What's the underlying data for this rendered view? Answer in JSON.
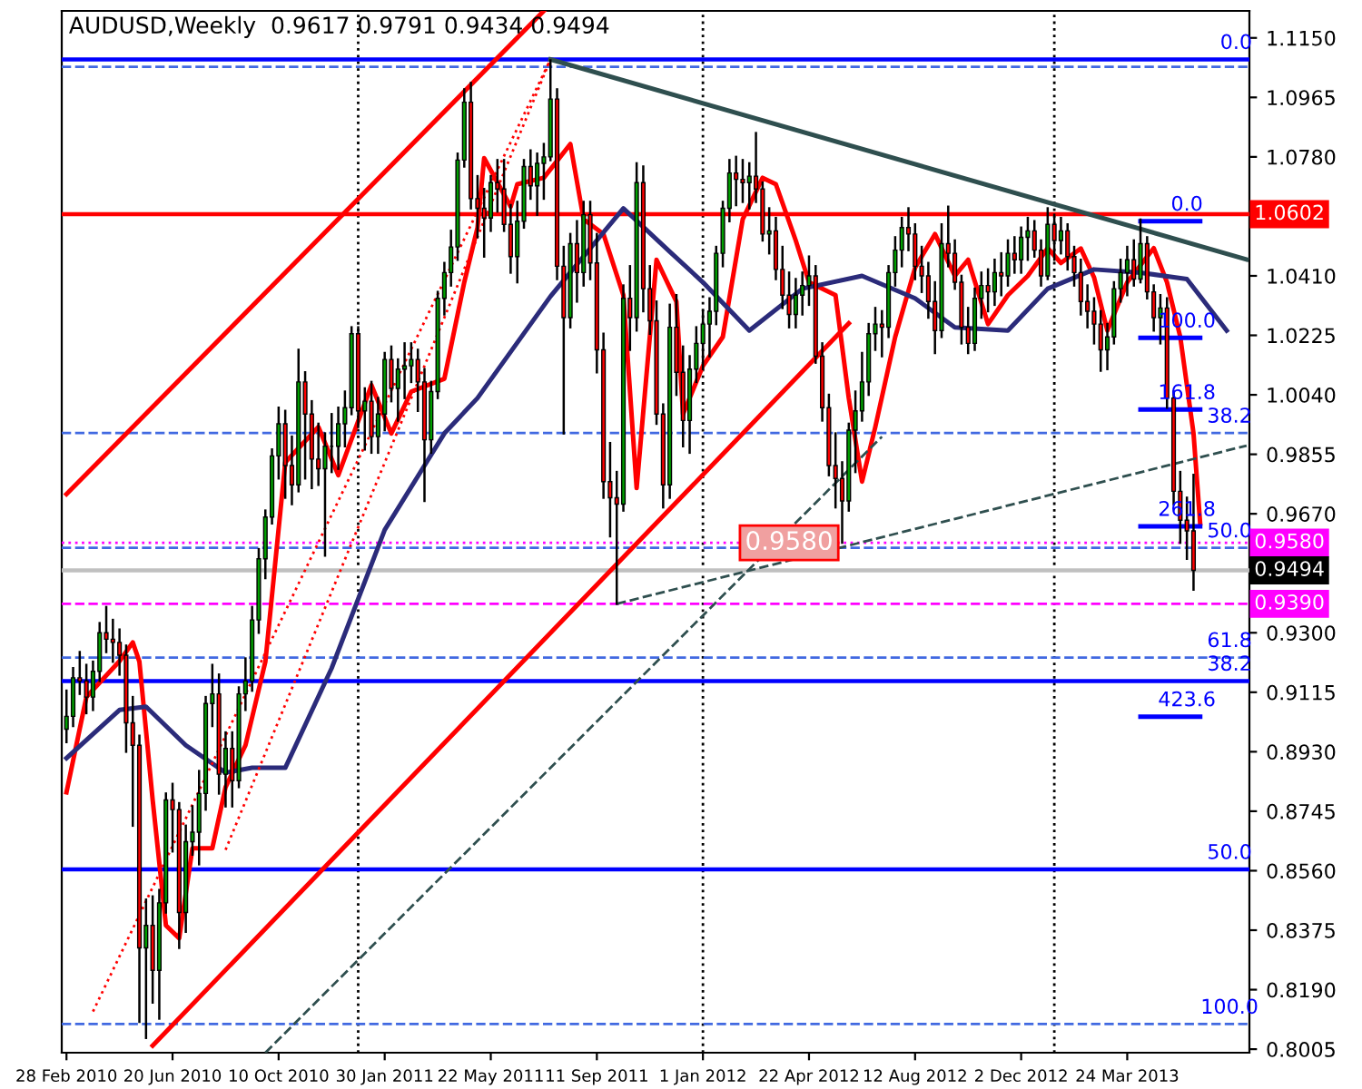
{
  "chart_data": {
    "type": "candlestick",
    "title": "AUDUSD,Weekly  0.9617 0.9791 0.9434 0.9494",
    "x": [
      "2010-02-28",
      "2010-03-07",
      "2010-03-14",
      "2010-03-21",
      "2010-03-28",
      "2010-04-04",
      "2010-04-11",
      "2010-04-18",
      "2010-04-25",
      "2010-05-02",
      "2010-05-09",
      "2010-05-16",
      "2010-05-23",
      "2010-05-30",
      "2010-06-06",
      "2010-06-13",
      "2010-06-20",
      "2010-06-27",
      "2010-07-04",
      "2010-07-11",
      "2010-07-18",
      "2010-07-25",
      "2010-08-01",
      "2010-08-08",
      "2010-08-15",
      "2010-08-22",
      "2010-08-29",
      "2010-09-05",
      "2010-09-12",
      "2010-09-19",
      "2010-09-26",
      "2010-10-03",
      "2010-10-10",
      "2010-10-17",
      "2010-10-24",
      "2010-10-31",
      "2010-11-07",
      "2010-11-14",
      "2010-11-21",
      "2010-11-28",
      "2010-12-05",
      "2010-12-12",
      "2010-12-19",
      "2010-12-26",
      "2011-01-02",
      "2011-01-09",
      "2011-01-16",
      "2011-01-23",
      "2011-01-30",
      "2011-02-06",
      "2011-02-13",
      "2011-02-20",
      "2011-02-27",
      "2011-03-06",
      "2011-03-13",
      "2011-03-20",
      "2011-03-27",
      "2011-04-03",
      "2011-04-10",
      "2011-04-17",
      "2011-04-24",
      "2011-05-01",
      "2011-05-08",
      "2011-05-15",
      "2011-05-22",
      "2011-05-29",
      "2011-06-05",
      "2011-06-12",
      "2011-06-19",
      "2011-06-26",
      "2011-07-03",
      "2011-07-10",
      "2011-07-17",
      "2011-07-24",
      "2011-07-31",
      "2011-08-07",
      "2011-08-14",
      "2011-08-21",
      "2011-08-28",
      "2011-09-04",
      "2011-09-11",
      "2011-09-18",
      "2011-09-25",
      "2011-10-02",
      "2011-10-09",
      "2011-10-16",
      "2011-10-23",
      "2011-10-30",
      "2011-11-06",
      "2011-11-13",
      "2011-11-20",
      "2011-11-27",
      "2011-12-04",
      "2011-12-11",
      "2011-12-18",
      "2011-12-25",
      "2012-01-01",
      "2012-01-08",
      "2012-01-15",
      "2012-01-22",
      "2012-01-29",
      "2012-02-05",
      "2012-02-12",
      "2012-02-19",
      "2012-02-26",
      "2012-03-04",
      "2012-03-11",
      "2012-03-18",
      "2012-03-25",
      "2012-04-01",
      "2012-04-08",
      "2012-04-15",
      "2012-04-22",
      "2012-04-29",
      "2012-05-06",
      "2012-05-13",
      "2012-05-20",
      "2012-05-27",
      "2012-06-03",
      "2012-06-10",
      "2012-06-17",
      "2012-06-24",
      "2012-07-01",
      "2012-07-08",
      "2012-07-15",
      "2012-07-22",
      "2012-07-29",
      "2012-08-05",
      "2012-08-12",
      "2012-08-19",
      "2012-08-26",
      "2012-09-02",
      "2012-09-09",
      "2012-09-16",
      "2012-09-23",
      "2012-09-30",
      "2012-10-07",
      "2012-10-14",
      "2012-10-21",
      "2012-10-28",
      "2012-11-04",
      "2012-11-11",
      "2012-11-18",
      "2012-11-25",
      "2012-12-02",
      "2012-12-09",
      "2012-12-16",
      "2012-12-23",
      "2012-12-30",
      "2013-01-06",
      "2013-01-13",
      "2013-01-20",
      "2013-01-27",
      "2013-02-03",
      "2013-02-10",
      "2013-02-17",
      "2013-02-24",
      "2013-03-03",
      "2013-03-10",
      "2013-03-17",
      "2013-03-24",
      "2013-03-31",
      "2013-04-07",
      "2013-04-14",
      "2013-04-21",
      "2013-04-28",
      "2013-05-05",
      "2013-05-12",
      "2013-05-19",
      "2013-05-26",
      "2013-06-02"
    ],
    "ohlc": [
      [
        0.9,
        0.912,
        0.896,
        0.904
      ],
      [
        0.904,
        0.919,
        0.901,
        0.916
      ],
      [
        0.916,
        0.924,
        0.911,
        0.915
      ],
      [
        0.915,
        0.92,
        0.905,
        0.91
      ],
      [
        0.91,
        0.921,
        0.906,
        0.918
      ],
      [
        0.918,
        0.933,
        0.915,
        0.93
      ],
      [
        0.93,
        0.938,
        0.924,
        0.928
      ],
      [
        0.928,
        0.934,
        0.921,
        0.927
      ],
      [
        0.927,
        0.931,
        0.917,
        0.923
      ],
      [
        0.923,
        0.926,
        0.893,
        0.902
      ],
      [
        0.902,
        0.91,
        0.87,
        0.895
      ],
      [
        0.895,
        0.898,
        0.809,
        0.832
      ],
      [
        0.832,
        0.847,
        0.804,
        0.839
      ],
      [
        0.839,
        0.848,
        0.815,
        0.825
      ],
      [
        0.825,
        0.85,
        0.81,
        0.846
      ],
      [
        0.846,
        0.88,
        0.843,
        0.878
      ],
      [
        0.878,
        0.883,
        0.862,
        0.875
      ],
      [
        0.875,
        0.877,
        0.832,
        0.843
      ],
      [
        0.843,
        0.87,
        0.837,
        0.865
      ],
      [
        0.865,
        0.876,
        0.861,
        0.868
      ],
      [
        0.868,
        0.887,
        0.858,
        0.88
      ],
      [
        0.88,
        0.91,
        0.875,
        0.908
      ],
      [
        0.908,
        0.92,
        0.901,
        0.911
      ],
      [
        0.911,
        0.917,
        0.88,
        0.886
      ],
      [
        0.886,
        0.899,
        0.876,
        0.894
      ],
      [
        0.894,
        0.899,
        0.876,
        0.884
      ],
      [
        0.884,
        0.913,
        0.882,
        0.911
      ],
      [
        0.911,
        0.922,
        0.906,
        0.915
      ],
      [
        0.915,
        0.938,
        0.912,
        0.934
      ],
      [
        0.934,
        0.956,
        0.93,
        0.953
      ],
      [
        0.953,
        0.968,
        0.947,
        0.966
      ],
      [
        0.966,
        0.987,
        0.964,
        0.985
      ],
      [
        0.985,
        1.0,
        0.978,
        0.995
      ],
      [
        0.995,
        0.999,
        0.972,
        0.982
      ],
      [
        0.982,
        0.991,
        0.97,
        0.976
      ],
      [
        0.976,
        1.018,
        0.974,
        1.008
      ],
      [
        1.008,
        1.011,
        0.978,
        0.998
      ],
      [
        0.998,
        1.002,
        0.975,
        0.984
      ],
      [
        0.984,
        0.995,
        0.976,
        0.981
      ],
      [
        0.981,
        0.992,
        0.954,
        0.988
      ],
      [
        0.988,
        0.998,
        0.98,
        0.988
      ],
      [
        0.988,
        1.0,
        0.981,
        0.995
      ],
      [
        0.995,
        1.005,
        0.988,
        1.0
      ],
      [
        1.0,
        1.025,
        0.998,
        1.023
      ],
      [
        1.023,
        1.025,
        0.994,
        0.999
      ],
      [
        0.999,
        1.006,
        0.987,
        1.002
      ],
      [
        1.002,
        1.008,
        0.986,
        0.991
      ],
      [
        0.991,
        1.003,
        0.986,
        0.998
      ],
      [
        0.998,
        1.017,
        0.993,
        1.015
      ],
      [
        1.015,
        1.019,
        1.002,
        1.006
      ],
      [
        1.006,
        1.015,
        0.996,
        1.012
      ],
      [
        1.012,
        1.02,
        1.003,
        1.013
      ],
      [
        1.013,
        1.02,
        1.008,
        1.015
      ],
      [
        1.015,
        1.018,
        0.999,
        1.008
      ],
      [
        1.008,
        1.012,
        0.971,
        0.99
      ],
      [
        0.99,
        1.008,
        0.986,
        1.005
      ],
      [
        1.005,
        1.036,
        1.003,
        1.034
      ],
      [
        1.034,
        1.045,
        1.029,
        1.042
      ],
      [
        1.042,
        1.055,
        1.038,
        1.05
      ],
      [
        1.05,
        1.079,
        1.046,
        1.077
      ],
      [
        1.077,
        1.099,
        1.075,
        1.095
      ],
      [
        1.095,
        1.101,
        1.062,
        1.065
      ],
      [
        1.065,
        1.072,
        1.053,
        1.062
      ],
      [
        1.062,
        1.068,
        1.047,
        1.059
      ],
      [
        1.059,
        1.072,
        1.055,
        1.07
      ],
      [
        1.07,
        1.077,
        1.061,
        1.068
      ],
      [
        1.068,
        1.077,
        1.055,
        1.057
      ],
      [
        1.057,
        1.063,
        1.042,
        1.047
      ],
      [
        1.047,
        1.064,
        1.039,
        1.058
      ],
      [
        1.058,
        1.077,
        1.056,
        1.075
      ],
      [
        1.075,
        1.08,
        1.065,
        1.069
      ],
      [
        1.069,
        1.079,
        1.06,
        1.076
      ],
      [
        1.076,
        1.082,
        1.065,
        1.078
      ],
      [
        1.078,
        1.108,
        1.077,
        1.096
      ],
      [
        1.096,
        1.099,
        1.04,
        1.044
      ],
      [
        1.044,
        1.05,
        0.992,
        1.028
      ],
      [
        1.028,
        1.054,
        1.025,
        1.051
      ],
      [
        1.051,
        1.058,
        1.033,
        1.042
      ],
      [
        1.042,
        1.064,
        1.038,
        1.06
      ],
      [
        1.06,
        1.064,
        1.04,
        1.045
      ],
      [
        1.045,
        1.054,
        1.011,
        1.018
      ],
      [
        1.018,
        1.023,
        0.972,
        0.977
      ],
      [
        0.977,
        0.989,
        0.96,
        0.972
      ],
      [
        0.972,
        0.98,
        0.939,
        0.97
      ],
      [
        0.97,
        1.038,
        0.968,
        1.034
      ],
      [
        1.034,
        1.044,
        1.018,
        1.028
      ],
      [
        1.028,
        1.076,
        1.024,
        1.07
      ],
      [
        1.07,
        1.075,
        1.03,
        1.037
      ],
      [
        1.037,
        1.044,
        1.023,
        1.027
      ],
      [
        1.027,
        1.033,
        0.995,
        0.998
      ],
      [
        0.998,
        1.001,
        0.969,
        0.976
      ],
      [
        0.976,
        1.032,
        0.972,
        1.025
      ],
      [
        1.025,
        1.035,
        1.004,
        1.011
      ],
      [
        1.011,
        1.019,
        0.988,
        0.996
      ],
      [
        0.996,
        1.016,
        0.986,
        1.012
      ],
      [
        1.012,
        1.025,
        1.008,
        1.02
      ],
      [
        1.02,
        1.03,
        1.012,
        1.026
      ],
      [
        1.026,
        1.034,
        1.016,
        1.03
      ],
      [
        1.03,
        1.05,
        1.026,
        1.048
      ],
      [
        1.048,
        1.064,
        1.044,
        1.062
      ],
      [
        1.062,
        1.077,
        1.058,
        1.073
      ],
      [
        1.073,
        1.078,
        1.063,
        1.071
      ],
      [
        1.071,
        1.077,
        1.064,
        1.07
      ],
      [
        1.07,
        1.076,
        1.062,
        1.072
      ],
      [
        1.072,
        1.0854,
        1.064,
        1.068
      ],
      [
        1.068,
        1.07,
        1.052,
        1.054
      ],
      [
        1.054,
        1.062,
        1.048,
        1.055
      ],
      [
        1.055,
        1.059,
        1.04,
        1.043
      ],
      [
        1.043,
        1.05,
        1.031,
        1.035
      ],
      [
        1.035,
        1.042,
        1.025,
        1.029
      ],
      [
        1.029,
        1.04,
        1.025,
        1.035
      ],
      [
        1.035,
        1.042,
        1.029,
        1.038
      ],
      [
        1.038,
        1.047,
        1.032,
        1.041
      ],
      [
        1.041,
        1.044,
        1.014,
        1.016
      ],
      [
        1.016,
        1.02,
        0.996,
        1.0
      ],
      [
        1.0,
        1.004,
        0.979,
        0.982
      ],
      [
        0.982,
        0.992,
        0.969,
        0.978
      ],
      [
        0.978,
        0.983,
        0.958,
        0.971
      ],
      [
        0.971,
        0.995,
        0.968,
        0.993
      ],
      [
        0.993,
        1.005,
        0.98,
        0.999
      ],
      [
        0.999,
        1.017,
        0.996,
        1.008
      ],
      [
        1.008,
        1.026,
        1.004,
        1.023
      ],
      [
        1.023,
        1.031,
        1.018,
        1.026
      ],
      [
        1.026,
        1.03,
        1.016,
        1.025
      ],
      [
        1.025,
        1.044,
        1.022,
        1.042
      ],
      [
        1.042,
        1.053,
        1.038,
        1.049
      ],
      [
        1.049,
        1.059,
        1.044,
        1.056
      ],
      [
        1.056,
        1.062,
        1.049,
        1.054
      ],
      [
        1.054,
        1.057,
        1.04,
        1.044
      ],
      [
        1.044,
        1.05,
        1.036,
        1.041
      ],
      [
        1.041,
        1.045,
        1.028,
        1.033
      ],
      [
        1.033,
        1.039,
        1.017,
        1.024
      ],
      [
        1.024,
        1.057,
        1.022,
        1.051
      ],
      [
        1.051,
        1.0625,
        1.044,
        1.048
      ],
      [
        1.048,
        1.052,
        1.037,
        1.039
      ],
      [
        1.039,
        1.041,
        1.02,
        1.025
      ],
      [
        1.025,
        1.031,
        1.017,
        1.02
      ],
      [
        1.02,
        1.037,
        1.018,
        1.034
      ],
      [
        1.034,
        1.042,
        1.028,
        1.038
      ],
      [
        1.038,
        1.043,
        1.03,
        1.036
      ],
      [
        1.036,
        1.046,
        1.032,
        1.042
      ],
      [
        1.042,
        1.048,
        1.035,
        1.041
      ],
      [
        1.041,
        1.052,
        1.038,
        1.048
      ],
      [
        1.048,
        1.053,
        1.042,
        1.046
      ],
      [
        1.046,
        1.056,
        1.042,
        1.053
      ],
      [
        1.053,
        1.059,
        1.046,
        1.055
      ],
      [
        1.055,
        1.058,
        1.047,
        1.049
      ],
      [
        1.049,
        1.052,
        1.038,
        1.041
      ],
      [
        1.041,
        1.062,
        1.04,
        1.057
      ],
      [
        1.057,
        1.06,
        1.046,
        1.052
      ],
      [
        1.052,
        1.059,
        1.048,
        1.055
      ],
      [
        1.055,
        1.057,
        1.043,
        1.047
      ],
      [
        1.047,
        1.05,
        1.038,
        1.042
      ],
      [
        1.042,
        1.046,
        1.029,
        1.033
      ],
      [
        1.033,
        1.038,
        1.025,
        1.03
      ],
      [
        1.03,
        1.034,
        1.02,
        1.026
      ],
      [
        1.026,
        1.03,
        1.0115,
        1.018
      ],
      [
        1.018,
        1.026,
        1.012,
        1.022
      ],
      [
        1.022,
        1.039,
        1.02,
        1.037
      ],
      [
        1.037,
        1.046,
        1.033,
        1.042
      ],
      [
        1.042,
        1.05,
        1.035,
        1.046
      ],
      [
        1.046,
        1.052,
        1.038,
        1.04
      ],
      [
        1.04,
        1.0585,
        1.039,
        1.051
      ],
      [
        1.051,
        1.053,
        1.034,
        1.036
      ],
      [
        1.036,
        1.038,
        1.024,
        1.028
      ],
      [
        1.028,
        1.035,
        1.02,
        1.031
      ],
      [
        1.031,
        1.034,
        1.0,
        1.003
      ],
      [
        1.003,
        1.005,
        0.97,
        0.974
      ],
      [
        0.974,
        0.98,
        0.958,
        0.965
      ],
      [
        0.965,
        0.972,
        0.953,
        0.9617
      ],
      [
        0.9617,
        0.9791,
        0.9434,
        0.9494
      ]
    ],
    "series": [
      {
        "type": "line",
        "color": "#ff0000",
        "x": [
          "2010-02-28",
          "2010-03-21",
          "2010-04-25",
          "2010-05-09",
          "2010-05-16",
          "2010-05-30",
          "2010-06-13",
          "2010-06-27",
          "2010-07-11",
          "2010-08-01",
          "2010-08-15",
          "2010-09-05",
          "2010-09-26",
          "2010-10-17",
          "2010-11-21",
          "2010-12-12",
          "2011-01-16",
          "2011-02-06",
          "2011-02-27",
          "2011-04-03",
          "2011-04-24",
          "2011-05-08",
          "2011-05-15",
          "2011-06-12",
          "2011-06-19",
          "2011-07-17",
          "2011-08-14",
          "2011-08-28",
          "2011-09-18",
          "2011-10-09",
          "2011-10-23",
          "2011-11-13",
          "2011-12-04",
          "2011-12-11",
          "2012-01-01",
          "2012-01-22",
          "2012-02-12",
          "2012-03-04",
          "2012-03-18",
          "2012-04-08",
          "2012-04-22",
          "2012-05-20",
          "2012-06-03",
          "2012-06-17",
          "2012-07-01",
          "2012-07-22",
          "2012-08-12",
          "2012-09-02",
          "2012-09-23",
          "2012-10-07",
          "2012-10-28",
          "2012-11-18",
          "2012-12-09",
          "2012-12-30",
          "2013-01-13",
          "2013-02-03",
          "2013-02-17",
          "2013-03-03",
          "2013-03-24",
          "2013-04-21",
          "2013-05-05",
          "2013-05-19",
          "2013-06-02",
          "2013-06-09"
        ],
        "values": [
          0.8804,
          0.91,
          0.9212,
          0.927,
          0.921,
          0.878,
          0.839,
          0.835,
          0.863,
          0.863,
          0.882,
          0.895,
          0.921,
          0.983,
          0.994,
          0.979,
          1.007,
          0.992,
          1.005,
          1.009,
          1.039,
          1.056,
          1.0776,
          1.0625,
          1.0695,
          1.0715,
          1.082,
          1.0586,
          1.054,
          1.035,
          0.975,
          1.046,
          1.033,
          0.998,
          1.013,
          1.022,
          1.0586,
          1.0715,
          1.0695,
          1.052,
          1.039,
          1.035,
          1.003,
          0.977,
          0.994,
          1.022,
          1.0435,
          1.054,
          1.041,
          1.046,
          1.026,
          1.035,
          1.041,
          1.0496,
          1.045,
          1.0495,
          1.0405,
          1.024,
          1.039,
          1.0496,
          1.039,
          1.022,
          0.992,
          0.964
        ]
      },
      {
        "type": "line",
        "color": "#2b2b7a",
        "x": [
          "2010-02-28",
          "2010-04-25",
          "2010-05-23",
          "2010-07-04",
          "2010-08-15",
          "2010-09-12",
          "2010-10-17",
          "2010-12-05",
          "2011-01-30",
          "2011-04-03",
          "2011-05-08",
          "2011-07-24",
          "2011-10-09",
          "2011-11-27",
          "2012-01-01",
          "2012-02-19",
          "2012-04-15",
          "2012-06-17",
          "2012-08-12",
          "2012-09-23",
          "2012-11-18",
          "2012-12-30",
          "2013-02-17",
          "2013-04-07",
          "2013-05-26",
          "2013-07-07"
        ],
        "values": [
          0.891,
          0.906,
          0.907,
          0.895,
          0.8865,
          0.888,
          0.888,
          0.919,
          0.962,
          0.992,
          1.003,
          1.0346,
          1.062,
          1.0485,
          1.039,
          1.024,
          1.037,
          1.041,
          1.034,
          1.025,
          1.024,
          1.037,
          1.043,
          1.042,
          1.04,
          1.024
        ]
      },
      {
        "type": "line",
        "color": "#ff0000",
        "x": [
          "2010-02-28",
          "2011-07-17"
        ],
        "values": [
          0.9731,
          1.1234
        ]
      },
      {
        "type": "line",
        "color": "#ff0000",
        "x": [
          "2010-05-30",
          "2012-06-03"
        ],
        "values": [
          0.8016,
          1.0262
        ]
      },
      {
        "type": "line",
        "color": "#ff0000",
        "line_style": "dotted",
        "x": [
          "2010-03-28",
          "2011-07-24"
        ],
        "values": [
          0.8122,
          1.1083
        ]
      },
      {
        "type": "line",
        "color": "#ff0000",
        "line_style": "dotted",
        "x": [
          "2010-08-15",
          "2011-07-24"
        ],
        "values": [
          0.8625,
          1.1083
        ]
      },
      {
        "type": "line",
        "color": "#2f4f4f",
        "x": [
          "2011-07-24",
          "2013-07-28"
        ],
        "values": [
          1.1083,
          1.0461
        ]
      },
      {
        "type": "line",
        "color": "#2f4f4f",
        "line_style": "dashed",
        "x": [
          "2010-09-26",
          "2012-07-08"
        ],
        "values": [
          0.7994,
          0.991
        ]
      },
      {
        "type": "line",
        "color": "#2f4f4f",
        "line_style": "dashed",
        "x": [
          "2011-10-02",
          "2013-07-28"
        ],
        "values": [
          0.939,
          0.9882
        ]
      },
      {
        "type": "line",
        "color": "#0000ff",
        "x": [
          "2013-04-07",
          "2013-06-09"
        ],
        "values": [
          1.058,
          1.058
        ]
      },
      {
        "type": "line",
        "color": "#0000ff",
        "x": [
          "2013-04-07",
          "2013-06-09"
        ],
        "values": [
          1.0217,
          1.0217
        ]
      },
      {
        "type": "line",
        "color": "#0000ff",
        "x": [
          "2013-04-07",
          "2013-06-09"
        ],
        "values": [
          0.9994,
          0.9994
        ]
      },
      {
        "type": "line",
        "color": "#0000ff",
        "x": [
          "2013-04-07",
          "2013-06-09"
        ],
        "values": [
          0.9631,
          0.9631
        ]
      },
      {
        "type": "line",
        "color": "#0000ff",
        "x": [
          "2013-04-07",
          "2013-06-09"
        ],
        "values": [
          0.9039,
          0.9039
        ]
      }
    ],
    "ref_lines": [
      {
        "axis": "y",
        "value": 1.1083,
        "color": "#0000ff",
        "line_style": "solid"
      },
      {
        "axis": "y",
        "value": 1.106,
        "color": "#4169e1",
        "line_style": "dashed"
      },
      {
        "axis": "y",
        "value": 1.0602,
        "label": "1.0602",
        "color": "#ff0000",
        "line_style": "solid"
      },
      {
        "axis": "y",
        "value": 0.9921,
        "color": "#4169e1",
        "line_style": "dashed"
      },
      {
        "axis": "y",
        "value": 0.9564,
        "color": "#4169e1",
        "line_style": "dashed"
      },
      {
        "axis": "y",
        "value": 0.958,
        "label": "0.9580",
        "color": "#ff00ff",
        "line_style": "dotted"
      },
      {
        "axis": "y",
        "value": 0.9494,
        "label": "0.9494",
        "color": "#c0c0c0",
        "line_style": "solid"
      },
      {
        "axis": "y",
        "value": 0.939,
        "label": "0.9390",
        "color": "#ff00ff",
        "line_style": "dashed"
      },
      {
        "axis": "y",
        "value": 0.9223,
        "color": "#4169e1",
        "line_style": "dashed"
      },
      {
        "axis": "y",
        "value": 0.915,
        "color": "#0000ff",
        "line_style": "solid"
      },
      {
        "axis": "y",
        "value": 0.8564,
        "color": "#0000ff",
        "line_style": "solid"
      },
      {
        "axis": "y",
        "value": 0.8083,
        "color": "#4169e1",
        "line_style": "dashed"
      },
      {
        "axis": "x",
        "value": "2011-01-02",
        "color": "#000000",
        "line_style": "dotted"
      },
      {
        "axis": "x",
        "value": "2012-01-01",
        "color": "#000000",
        "line_style": "dotted"
      },
      {
        "axis": "x",
        "value": "2013-01-06",
        "color": "#000000",
        "line_style": "dotted"
      }
    ],
    "annotations": [
      {
        "text": "0.9580",
        "x": "2012-04-01",
        "y": 0.958
      },
      {
        "text": "0.0",
        "x": "2013-05-26",
        "y": 1.058
      },
      {
        "text": "100.0",
        "x": "2013-05-26",
        "y": 1.0217
      },
      {
        "text": "161.8",
        "x": "2013-05-26",
        "y": 0.9994
      },
      {
        "text": "261.8",
        "x": "2013-05-26",
        "y": 0.9631
      },
      {
        "text": "423.6",
        "x": "2013-05-26",
        "y": 0.9039
      },
      {
        "text": "0.0",
        "x": "2013-07-17",
        "y": 1.1083
      },
      {
        "text": "38.2",
        "x": "2013-07-10",
        "y": 0.9921
      },
      {
        "text": "50.0",
        "x": "2013-07-10",
        "y": 0.9564
      },
      {
        "text": "61.8",
        "x": "2013-07-10",
        "y": 0.9223
      },
      {
        "text": "38.2",
        "x": "2013-07-10",
        "y": 0.915
      },
      {
        "text": "50.0",
        "x": "2013-07-10",
        "y": 0.8564
      },
      {
        "text": "100.0",
        "x": "2013-07-10",
        "y": 0.8083
      }
    ],
    "xlim": [
      "2010-02-23",
      "2013-07-31"
    ],
    "xticks": [
      {
        "value": "2010-02-28",
        "label": "28 Feb 2010"
      },
      {
        "value": "2010-06-20",
        "label": "20 Jun 2010"
      },
      {
        "value": "2010-10-10",
        "label": "10 Oct 2010"
      },
      {
        "value": "2011-01-30",
        "label": "30 Jan 2011"
      },
      {
        "value": "2011-05-22",
        "label": "22 May 2011"
      },
      {
        "value": "2011-09-11",
        "label": "11 Sep 2011"
      },
      {
        "value": "2012-01-01",
        "label": "1 Jan 2012"
      },
      {
        "value": "2012-04-22",
        "label": "22 Apr 2012"
      },
      {
        "value": "2012-08-12",
        "label": "12 Aug 2012"
      },
      {
        "value": "2012-12-02",
        "label": "2 Dec 2012"
      },
      {
        "value": "2013-03-24",
        "label": "24 Mar 2013"
      }
    ],
    "ylim": [
      0.7994,
      1.1234
    ],
    "yticks": [
      {
        "value": 1.115,
        "label": "1.1150"
      },
      {
        "value": 1.0965,
        "label": "1.0965"
      },
      {
        "value": 1.078,
        "label": "1.0780"
      },
      {
        "value": 1.041,
        "label": "1.0410"
      },
      {
        "value": 1.0225,
        "label": "1.0225"
      },
      {
        "value": 1.004,
        "label": "1.0040"
      },
      {
        "value": 0.9855,
        "label": "0.9855"
      },
      {
        "value": 0.967,
        "label": "0.9670"
      },
      {
        "value": 0.93,
        "label": "0.9300"
      },
      {
        "value": 0.9115,
        "label": "0.9115"
      },
      {
        "value": 0.893,
        "label": "0.8930"
      },
      {
        "value": 0.8745,
        "label": "0.8745"
      },
      {
        "value": 0.856,
        "label": "0.8560"
      },
      {
        "value": 0.8375,
        "label": "0.8375"
      },
      {
        "value": 0.819,
        "label": "0.8190"
      },
      {
        "value": 0.8005,
        "label": "0.8005"
      }
    ]
  }
}
